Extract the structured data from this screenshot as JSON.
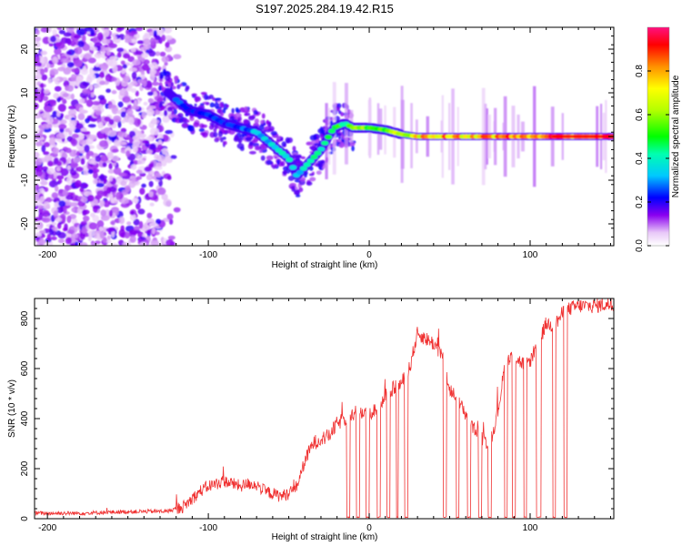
{
  "title": "S197.2025.284.19.42.R15",
  "chart_data": [
    {
      "type": "heatmap",
      "xlabel": "Height of straight line (km)",
      "ylabel": "Frequency (Hz)",
      "xlim": [
        -208,
        152
      ],
      "ylim": [
        -25,
        25
      ],
      "xticks": [
        -200,
        -100,
        0,
        100
      ],
      "yticks": [
        -20,
        -10,
        0,
        10,
        20
      ],
      "ridge": {
        "x": [
          -125,
          -112,
          -100,
          -90,
          -80,
          -70,
          -60,
          -50,
          -45,
          -40,
          -30,
          -22,
          -15,
          -10,
          0,
          10,
          20,
          30,
          40,
          60,
          80,
          100,
          120,
          150
        ],
        "y": [
          10,
          6,
          5,
          3,
          2,
          1,
          -2,
          -5,
          -9,
          -7,
          -3,
          2,
          3,
          2,
          2,
          1.5,
          0.5,
          0,
          0,
          0,
          0,
          0,
          0,
          0
        ],
        "amplitude": [
          0.3,
          0.25,
          0.25,
          0.25,
          0.28,
          0.35,
          0.4,
          0.4,
          0.35,
          0.4,
          0.45,
          0.5,
          0.55,
          0.6,
          0.6,
          0.6,
          0.7,
          0.8,
          0.85,
          0.85,
          0.9,
          0.9,
          0.95,
          0.95
        ]
      },
      "colorbar": {
        "label": "Normalized spectral amplitude",
        "range": [
          0,
          1
        ],
        "ticks": [
          0.0,
          0.2,
          0.4,
          0.6,
          0.8
        ],
        "tick_labels": [
          "0.0",
          "0.2",
          "0.4",
          "0.6",
          "0.8"
        ]
      }
    },
    {
      "type": "line",
      "xlabel": "Height of straight line (km)",
      "ylabel": "SNR (10 * v/v)",
      "xlim": [
        -208,
        152
      ],
      "ylim": [
        0,
        880
      ],
      "xticks": [
        -200,
        -100,
        0,
        100
      ],
      "yticks": [
        0,
        200,
        400,
        600,
        800
      ],
      "color": "#f03232",
      "series": [
        {
          "name": "SNR",
          "x": [
            -208,
            -180,
            -150,
            -125,
            -115,
            -110,
            -105,
            -100,
            -95,
            -90,
            -85,
            -80,
            -75,
            -70,
            -65,
            -60,
            -55,
            -50,
            -45,
            -40,
            -35,
            -30,
            -25,
            -20,
            -15,
            -10,
            -5,
            0,
            5,
            10,
            15,
            20,
            25,
            30,
            35,
            40,
            45,
            50,
            55,
            60,
            65,
            70,
            75,
            80,
            85,
            90,
            95,
            100,
            105,
            110,
            115,
            120,
            125,
            130,
            135,
            140,
            145,
            152
          ],
          "y": [
            22,
            22,
            28,
            30,
            50,
            80,
            110,
            130,
            140,
            150,
            140,
            130,
            140,
            135,
            110,
            100,
            90,
            100,
            130,
            230,
            300,
            320,
            330,
            380,
            400,
            420,
            430,
            420,
            440,
            500,
            520,
            540,
            600,
            740,
            720,
            700,
            660,
            520,
            470,
            420,
            360,
            320,
            300,
            430,
            640,
            650,
            620,
            630,
            700,
            780,
            770,
            820,
            840,
            850,
            850,
            850,
            855,
            855
          ],
          "dropouts": [
            [
              -14,
              -12
            ],
            [
              -8,
              -6
            ],
            [
              -2,
              0
            ],
            [
              5,
              7
            ],
            [
              11,
              13
            ],
            [
              17,
              18
            ],
            [
              22,
              24
            ],
            [
              46,
              48
            ],
            [
              54,
              56
            ],
            [
              61,
              63
            ],
            [
              68,
              70
            ],
            [
              74,
              76
            ],
            [
              84,
              86
            ],
            [
              89,
              91
            ],
            [
              96,
              98
            ],
            [
              104,
              107
            ],
            [
              114,
              116
            ],
            [
              121,
              123
            ]
          ]
        }
      ]
    }
  ]
}
